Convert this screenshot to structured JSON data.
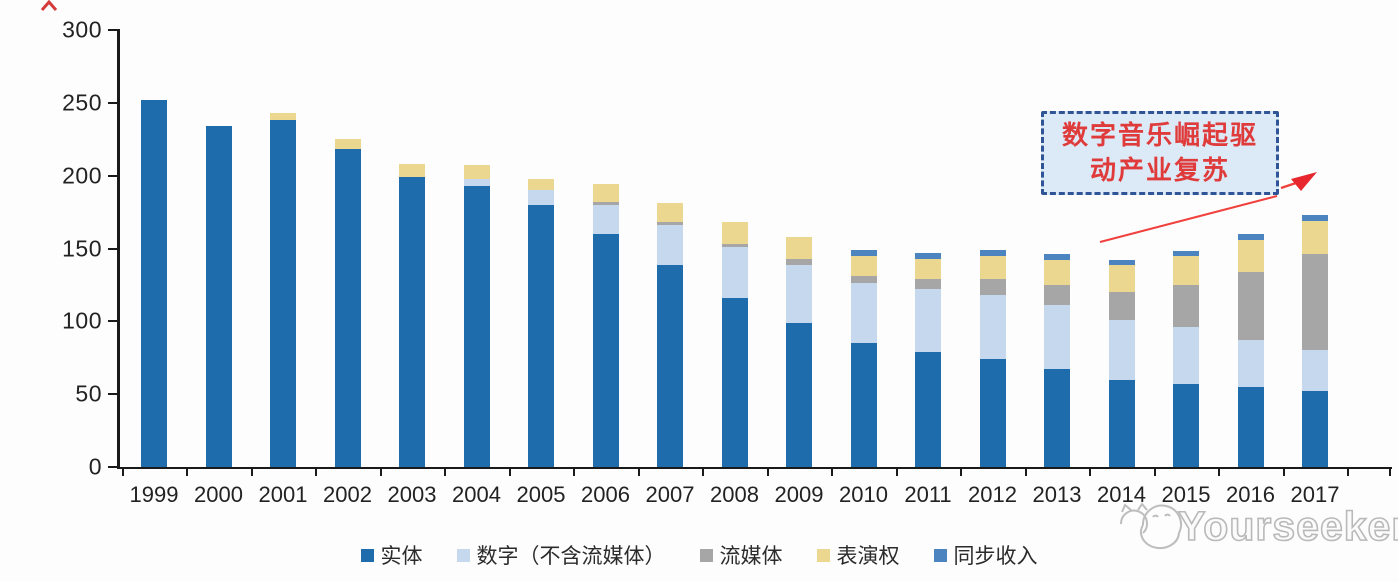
{
  "chart_data": {
    "type": "bar",
    "stacked": true,
    "title": "",
    "xlabel": "",
    "ylabel": "",
    "categories": [
      "1999",
      "2000",
      "2001",
      "2002",
      "2003",
      "2004",
      "2005",
      "2006",
      "2007",
      "2008",
      "2009",
      "2010",
      "2011",
      "2012",
      "2013",
      "2014",
      "2015",
      "2016",
      "2017"
    ],
    "series": [
      {
        "name": "实体",
        "color": "#1e6cac",
        "values": [
          252,
          234,
          238,
          218,
          199,
          193,
          180,
          160,
          139,
          116,
          99,
          85,
          79,
          74,
          67,
          60,
          57,
          55,
          52
        ]
      },
      {
        "name": "数字（不含流媒体）",
        "color": "#c5d8ee",
        "values": [
          0,
          0,
          0,
          0,
          0,
          5,
          10,
          20,
          27,
          35,
          40,
          41,
          43,
          44,
          44,
          41,
          39,
          32,
          28
        ]
      },
      {
        "name": "流媒体",
        "color": "#a6a6a6",
        "values": [
          0,
          0,
          0,
          0,
          0,
          0,
          0,
          2,
          2,
          2,
          4,
          5,
          7,
          11,
          14,
          19,
          29,
          47,
          66
        ]
      },
      {
        "name": "表演权",
        "color": "#ebd78f",
        "values": [
          0,
          0,
          5,
          7,
          9,
          9,
          8,
          12,
          13,
          15,
          15,
          14,
          14,
          16,
          17,
          19,
          20,
          22,
          23
        ]
      },
      {
        "name": "同步收入",
        "color": "#4c84c0",
        "values": [
          0,
          0,
          0,
          0,
          0,
          0,
          0,
          0,
          0,
          0,
          0,
          4,
          4,
          4,
          4,
          3,
          3,
          4,
          4
        ]
      }
    ],
    "totals": [
      252,
      234,
      243,
      225,
      208,
      207,
      198,
      194,
      181,
      168,
      158,
      149,
      147,
      149,
      146,
      142,
      148,
      160,
      173
    ],
    "ylim": [
      0,
      300
    ],
    "ytick_interval": 50,
    "yticks": [
      "0",
      "50",
      "100",
      "150",
      "200",
      "250",
      "300"
    ],
    "grid": false,
    "legend_position": "bottom"
  },
  "annotation": {
    "line1": "数字音乐崛起驱",
    "line2": "动产业复苏",
    "text_color": "#e03b3b",
    "box_fill": "#dce9f7",
    "box_border": "#2f5597",
    "arrow_color": "#f0413d"
  },
  "watermark": {
    "text": "Yourseeker",
    "color": "#bdbdbd",
    "logo": "cat-face-logo"
  }
}
